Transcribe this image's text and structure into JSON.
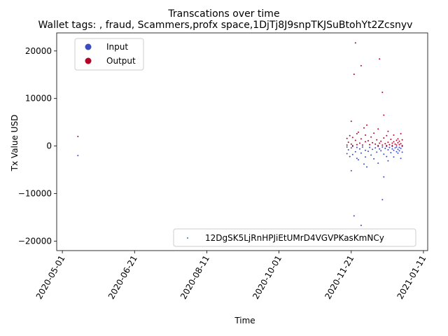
{
  "chart_data": {
    "type": "scatter",
    "title": "Transcations over time",
    "subtitle": "Wallet tags: , fraud, Scammers,profx space,1DjTj8J9snpTKJSuBtohYt2Zcsnyv",
    "xlabel": "Time",
    "ylabel": "Tx Value USD",
    "x_ticks": [
      "2020-05-01",
      "2020-06-21",
      "2020-08-11",
      "2020-10-01",
      "2020-11-21",
      "2021-01-11"
    ],
    "y_ticks": [
      -20000,
      -10000,
      0,
      10000,
      20000
    ],
    "y_tick_labels": [
      "−20000",
      "−10000",
      "0",
      "10000",
      "20000"
    ],
    "xlim": [
      "2020-04-27",
      "2021-01-14"
    ],
    "ylim": [
      -22000,
      23800
    ],
    "grid": false,
    "colors": {
      "input": "#3b4cc0",
      "output": "#b40426"
    },
    "legend_top_left": {
      "placement": "upper left",
      "entries": [
        {
          "label": "Input",
          "color": "#3b4cc0"
        },
        {
          "label": "Output",
          "color": "#b40426"
        }
      ]
    },
    "legend_bottom_right": {
      "placement": "lower right",
      "label": "12DgSK5LjRnHPJiEtUMrD4VGVPKasKmNCy",
      "color": "#1f77b4"
    },
    "series": [
      {
        "name": "Input",
        "color": "#3b4cc0",
        "points": [
          [
            "2020-05-12",
            -2000
          ],
          [
            "2020-11-18",
            -200
          ],
          [
            "2020-11-18",
            -1600
          ],
          [
            "2020-11-19",
            -800
          ],
          [
            "2020-11-20",
            -2200
          ],
          [
            "2020-11-21",
            -400
          ],
          [
            "2020-11-21",
            -5200
          ],
          [
            "2020-11-22",
            -1800
          ],
          [
            "2020-11-22",
            -100
          ],
          [
            "2020-11-23",
            -14700
          ],
          [
            "2020-11-24",
            -1200
          ],
          [
            "2020-11-25",
            -2600
          ],
          [
            "2020-11-25",
            -300
          ],
          [
            "2020-11-26",
            -2900
          ],
          [
            "2020-11-27",
            -600
          ],
          [
            "2020-11-28",
            -16700
          ],
          [
            "2020-11-28",
            -1500
          ],
          [
            "2020-11-29",
            -200
          ],
          [
            "2020-11-30",
            -3800
          ],
          [
            "2020-12-01",
            -2300
          ],
          [
            "2020-12-01",
            -900
          ],
          [
            "2020-12-02",
            -4400
          ],
          [
            "2020-12-03",
            -1100
          ],
          [
            "2020-12-04",
            -300
          ],
          [
            "2020-12-05",
            -1900
          ],
          [
            "2020-12-06",
            -700
          ],
          [
            "2020-12-07",
            -2700
          ],
          [
            "2020-12-08",
            -400
          ],
          [
            "2020-12-09",
            -1300
          ],
          [
            "2020-12-10",
            -3600
          ],
          [
            "2020-12-10",
            -100
          ],
          [
            "2020-12-11",
            -600
          ],
          [
            "2020-12-12",
            -1000
          ],
          [
            "2020-12-13",
            -11300
          ],
          [
            "2020-12-13",
            -200
          ],
          [
            "2020-12-14",
            -6500
          ],
          [
            "2020-12-14",
            -1700
          ],
          [
            "2020-12-15",
            -500
          ],
          [
            "2020-12-16",
            -2200
          ],
          [
            "2020-12-16",
            -100
          ],
          [
            "2020-12-17",
            -3100
          ],
          [
            "2020-12-17",
            -800
          ],
          [
            "2020-12-18",
            -300
          ],
          [
            "2020-12-19",
            -1400
          ],
          [
            "2020-12-20",
            -600
          ],
          [
            "2020-12-20",
            -100
          ],
          [
            "2020-12-21",
            -2300
          ],
          [
            "2020-12-21",
            -900
          ],
          [
            "2020-12-22",
            -400
          ],
          [
            "2020-12-23",
            -1200
          ],
          [
            "2020-12-23",
            -200
          ],
          [
            "2020-12-24",
            -700
          ],
          [
            "2020-12-24",
            -1500
          ],
          [
            "2020-12-25",
            -300
          ],
          [
            "2020-12-25",
            -1000
          ],
          [
            "2020-12-26",
            -2600
          ],
          [
            "2020-12-26",
            -500
          ],
          [
            "2020-12-27",
            -1300
          ],
          [
            "2020-12-27",
            -100
          ]
        ]
      },
      {
        "name": "Output",
        "color": "#b40426",
        "points": [
          [
            "2020-05-12",
            2000
          ],
          [
            "2020-11-18",
            200
          ],
          [
            "2020-11-18",
            1600
          ],
          [
            "2020-11-19",
            800
          ],
          [
            "2020-11-20",
            2200
          ],
          [
            "2020-11-21",
            400
          ],
          [
            "2020-11-21",
            5200
          ],
          [
            "2020-11-22",
            1800
          ],
          [
            "2020-11-22",
            100
          ],
          [
            "2020-11-23",
            15100
          ],
          [
            "2020-11-24",
            21700
          ],
          [
            "2020-11-24",
            1200
          ],
          [
            "2020-11-25",
            2600
          ],
          [
            "2020-11-25",
            300
          ],
          [
            "2020-11-26",
            2900
          ],
          [
            "2020-11-27",
            600
          ],
          [
            "2020-11-28",
            16900
          ],
          [
            "2020-11-28",
            1500
          ],
          [
            "2020-11-29",
            200
          ],
          [
            "2020-11-30",
            3800
          ],
          [
            "2020-12-01",
            2300
          ],
          [
            "2020-12-01",
            900
          ],
          [
            "2020-12-02",
            4400
          ],
          [
            "2020-12-03",
            1100
          ],
          [
            "2020-12-04",
            300
          ],
          [
            "2020-12-05",
            1900
          ],
          [
            "2020-12-06",
            700
          ],
          [
            "2020-12-07",
            2700
          ],
          [
            "2020-12-08",
            400
          ],
          [
            "2020-12-09",
            1300
          ],
          [
            "2020-12-10",
            3600
          ],
          [
            "2020-12-10",
            100
          ],
          [
            "2020-12-11",
            18300
          ],
          [
            "2020-12-11",
            600
          ],
          [
            "2020-12-12",
            1000
          ],
          [
            "2020-12-13",
            11300
          ],
          [
            "2020-12-13",
            200
          ],
          [
            "2020-12-14",
            6500
          ],
          [
            "2020-12-14",
            1700
          ],
          [
            "2020-12-15",
            500
          ],
          [
            "2020-12-16",
            2200
          ],
          [
            "2020-12-16",
            100
          ],
          [
            "2020-12-17",
            3100
          ],
          [
            "2020-12-17",
            800
          ],
          [
            "2020-12-18",
            300
          ],
          [
            "2020-12-19",
            1400
          ],
          [
            "2020-12-20",
            600
          ],
          [
            "2020-12-20",
            100
          ],
          [
            "2020-12-21",
            2300
          ],
          [
            "2020-12-21",
            900
          ],
          [
            "2020-12-22",
            400
          ],
          [
            "2020-12-23",
            1200
          ],
          [
            "2020-12-23",
            200
          ],
          [
            "2020-12-24",
            700
          ],
          [
            "2020-12-24",
            1500
          ],
          [
            "2020-12-25",
            300
          ],
          [
            "2020-12-25",
            1000
          ],
          [
            "2020-12-26",
            2600
          ],
          [
            "2020-12-26",
            500
          ],
          [
            "2020-12-27",
            1300
          ],
          [
            "2020-12-27",
            100
          ]
        ]
      }
    ]
  }
}
